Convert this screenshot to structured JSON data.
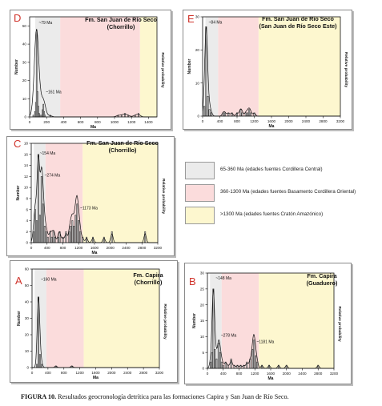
{
  "legend": [
    {
      "label": "65-360 Ma (edades fuentes Cordillera Central)",
      "color": "#ebebeb"
    },
    {
      "label": "360-1300 Ma (edades fuentes Basamento Cordillera Oriental)",
      "color": "#fbdcdc"
    },
    {
      "label": ">1300 Ma (edades fuentes Cratón Amazónico)",
      "color": "#fdf7cf"
    }
  ],
  "caption": {
    "label": "FIGURA 10.",
    "text": "Resultados geocronología detrítica para las formaciones Capira y San Juan de Río Seco."
  },
  "chart_data": [
    {
      "id": "D",
      "type": "bar",
      "letter": "D",
      "title_line1": "Fm. San Juan de Río Seco",
      "title_line2": "(Chorrillo)",
      "xlabel": "Ma",
      "ylabel": "Number",
      "y2label": "Relative probability",
      "xlim": [
        0,
        1500
      ],
      "ylim": [
        0,
        55
      ],
      "xticks": [
        0,
        200,
        400,
        600,
        800,
        1000,
        1200,
        1400
      ],
      "yticks": [
        0,
        10,
        20,
        30,
        40,
        50
      ],
      "bands": [
        [
          65,
          360,
          "#ebebeb"
        ],
        [
          360,
          1300,
          "#fbdcdc"
        ],
        [
          1300,
          1500,
          "#fdf7cf"
        ]
      ],
      "annotations": [
        {
          "text": "~79 Ma",
          "x": 79,
          "y": 51
        },
        {
          "text": "~161 Ma",
          "x": 161,
          "y": 13
        }
      ],
      "bins": [
        [
          40,
          1
        ],
        [
          60,
          3
        ],
        [
          70,
          8
        ],
        [
          80,
          48
        ],
        [
          90,
          14
        ],
        [
          100,
          6
        ],
        [
          110,
          2
        ],
        [
          120,
          1
        ],
        [
          140,
          1
        ],
        [
          150,
          4
        ],
        [
          160,
          7
        ],
        [
          170,
          3
        ],
        [
          180,
          1
        ],
        [
          240,
          1
        ],
        [
          1040,
          1
        ],
        [
          1080,
          1
        ],
        [
          1120,
          2
        ],
        [
          1160,
          1
        ],
        [
          1240,
          1
        ],
        [
          1280,
          2
        ]
      ]
    },
    {
      "id": "E",
      "type": "bar",
      "letter": "E",
      "title_line1": "Fm. San Juan de Río Seco",
      "title_line2": "(San Juan de Río Seco Este)",
      "xlabel": "Ma",
      "ylabel": "Number",
      "y2label": "Relative probability",
      "xlim": [
        0,
        3200
      ],
      "ylim": [
        0,
        30
      ],
      "xticks": [
        0,
        400,
        800,
        1200,
        1600,
        2000,
        2400,
        2800,
        3200
      ],
      "yticks": [
        0,
        10,
        20,
        30
      ],
      "bands": [
        [
          65,
          360,
          "#ebebeb"
        ],
        [
          360,
          1300,
          "#fbdcdc"
        ],
        [
          1300,
          3200,
          "#fdf7cf"
        ]
      ],
      "annotations": [
        {
          "text": "~84 Ma",
          "x": 84,
          "y": 28
        }
      ],
      "bins": [
        [
          40,
          3
        ],
        [
          80,
          27
        ],
        [
          120,
          6
        ],
        [
          160,
          2
        ],
        [
          200,
          1
        ],
        [
          480,
          1
        ],
        [
          520,
          1
        ],
        [
          600,
          1
        ],
        [
          680,
          1
        ],
        [
          800,
          1
        ],
        [
          880,
          2
        ],
        [
          920,
          1
        ],
        [
          1000,
          1
        ],
        [
          1040,
          1
        ],
        [
          1080,
          2
        ],
        [
          1120,
          1
        ],
        [
          1200,
          1
        ]
      ]
    },
    {
      "id": "C",
      "type": "bar",
      "letter": "C",
      "title_line1": "Fm. San Juan de Río Seco",
      "title_line2": "(Chorrillo)",
      "xlabel": "Ma",
      "ylabel": "Number",
      "y2label": "Relative probability",
      "xlim": [
        0,
        3200
      ],
      "ylim": [
        0,
        18
      ],
      "xticks": [
        0,
        400,
        800,
        1200,
        1600,
        2000,
        2400,
        2800,
        3200
      ],
      "yticks": [
        0,
        2,
        4,
        6,
        8,
        10,
        12,
        14,
        16,
        18
      ],
      "bands": [
        [
          65,
          360,
          "#ebebeb"
        ],
        [
          360,
          1300,
          "#fbdcdc"
        ],
        [
          1300,
          3200,
          "#fdf7cf"
        ]
      ],
      "annotations": [
        {
          "text": "~154 Ma",
          "x": 154,
          "y": 16
        },
        {
          "text": "~274 Ma",
          "x": 274,
          "y": 12
        },
        {
          "text": "~1173 Ma",
          "x": 1173,
          "y": 6
        }
      ],
      "bins": [
        [
          60,
          2
        ],
        [
          100,
          6
        ],
        [
          140,
          4
        ],
        [
          180,
          16
        ],
        [
          220,
          5
        ],
        [
          260,
          12
        ],
        [
          300,
          7
        ],
        [
          340,
          3
        ],
        [
          380,
          2
        ],
        [
          420,
          1
        ],
        [
          480,
          2
        ],
        [
          520,
          1
        ],
        [
          560,
          2
        ],
        [
          600,
          1
        ],
        [
          680,
          1
        ],
        [
          720,
          2
        ],
        [
          800,
          1
        ],
        [
          880,
          2
        ],
        [
          960,
          2
        ],
        [
          1000,
          3
        ],
        [
          1040,
          4
        ],
        [
          1080,
          3
        ],
        [
          1120,
          5
        ],
        [
          1160,
          7
        ],
        [
          1200,
          4
        ],
        [
          1240,
          2
        ],
        [
          1300,
          1
        ],
        [
          1400,
          1
        ],
        [
          1560,
          1
        ],
        [
          1840,
          1
        ],
        [
          2040,
          2
        ],
        [
          2880,
          2
        ]
      ]
    },
    {
      "id": "A",
      "type": "bar",
      "letter": "A",
      "title_line1": "Fm. Capira",
      "title_line2": "(Chorrillo)",
      "xlabel": "Ma",
      "ylabel": "Number",
      "y2label": "Relative probability",
      "xlim": [
        0,
        3200
      ],
      "ylim": [
        0,
        60
      ],
      "xticks": [
        0,
        400,
        800,
        1200,
        1600,
        2000,
        2400,
        2800,
        3200
      ],
      "yticks": [
        0,
        10,
        20,
        30,
        40,
        50,
        60
      ],
      "bands": [
        [
          65,
          360,
          "#ebebeb"
        ],
        [
          360,
          1300,
          "#fbdcdc"
        ],
        [
          1300,
          3200,
          "#fdf7cf"
        ]
      ],
      "annotations": [
        {
          "text": "~160 Ma",
          "x": 160,
          "y": 53
        }
      ],
      "bins": [
        [
          120,
          2
        ],
        [
          160,
          43
        ],
        [
          200,
          8
        ],
        [
          240,
          2
        ],
        [
          600,
          1
        ],
        [
          1000,
          1
        ]
      ]
    },
    {
      "id": "B",
      "type": "bar",
      "letter": "B",
      "title_line1": "Fm. Capira",
      "title_line2": "(Guaduero)",
      "xlabel": "Ma",
      "ylabel": "Number",
      "y2label": "Relative probability",
      "xlim": [
        0,
        3200
      ],
      "ylim": [
        0,
        30
      ],
      "xticks": [
        0,
        400,
        800,
        1200,
        1600,
        2000,
        2400,
        2800,
        3200
      ],
      "yticks": [
        0,
        5,
        10,
        15,
        20,
        25,
        30
      ],
      "bands": [
        [
          65,
          360,
          "#ebebeb"
        ],
        [
          360,
          1300,
          "#fbdcdc"
        ],
        [
          1300,
          3200,
          "#fdf7cf"
        ]
      ],
      "annotations": [
        {
          "text": "~148 Ma",
          "x": 148,
          "y": 28
        },
        {
          "text": "~278 Ma",
          "x": 278,
          "y": 10
        },
        {
          "text": "~1181 Ma",
          "x": 1181,
          "y": 8
        }
      ],
      "bins": [
        [
          80,
          2
        ],
        [
          120,
          5
        ],
        [
          150,
          25
        ],
        [
          190,
          6
        ],
        [
          230,
          3
        ],
        [
          280,
          8
        ],
        [
          320,
          5
        ],
        [
          360,
          2
        ],
        [
          400,
          1
        ],
        [
          460,
          2
        ],
        [
          520,
          1
        ],
        [
          600,
          3
        ],
        [
          680,
          1
        ],
        [
          760,
          1
        ],
        [
          840,
          1
        ],
        [
          920,
          1
        ],
        [
          1000,
          2
        ],
        [
          1080,
          3
        ],
        [
          1140,
          6
        ],
        [
          1180,
          9
        ],
        [
          1220,
          4
        ],
        [
          1260,
          2
        ],
        [
          1380,
          1
        ],
        [
          1560,
          1
        ],
        [
          1800,
          1
        ],
        [
          2000,
          1
        ],
        [
          2800,
          1
        ]
      ]
    }
  ]
}
